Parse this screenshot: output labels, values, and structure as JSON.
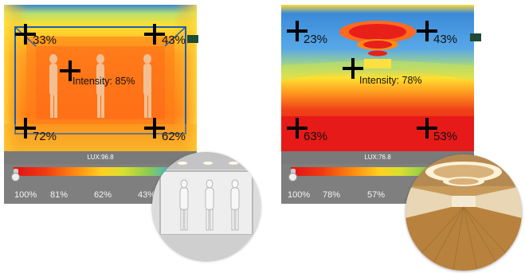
{
  "panels": [
    {
      "corners": [
        "33%",
        "43%",
        "72%",
        "62%"
      ],
      "intensity": "Intensity: 85%",
      "lux": "LUX:96.8",
      "scale_ticks": [
        "100%",
        "81%",
        "62%",
        "43%"
      ]
    },
    {
      "corners": [
        "23%",
        "43%",
        "63%",
        "53%"
      ],
      "intensity": "Intensity: 78%",
      "lux": "LUX:76.8",
      "scale_ticks": [
        "100%",
        "78%",
        "57%"
      ]
    }
  ],
  "colors": {
    "heat_red": "#e8201a",
    "heat_orange": "#ff8a10",
    "heat_yellow": "#ffd020",
    "heat_green": "#8ecc50",
    "heat_blue": "#2a78d8",
    "bar_gray": "#7f7f7f"
  }
}
